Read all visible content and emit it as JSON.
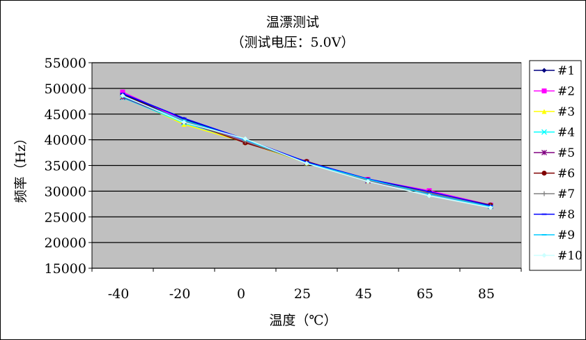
{
  "chart_data": {
    "type": "line",
    "title": "温漂测试",
    "subtitle": "（测试电压：5.0V）",
    "xlabel": "温度（℃）",
    "ylabel": "频率（Hz）",
    "categories": [
      "-40",
      "-20",
      "0",
      "25",
      "45",
      "65",
      "85"
    ],
    "ylim": [
      15000,
      55000
    ],
    "yticks": [
      "15000",
      "20000",
      "25000",
      "30000",
      "35000",
      "40000",
      "45000",
      "50000",
      "55000"
    ],
    "grid": "horizontal",
    "legend_position": "right",
    "series": [
      {
        "name": "#1",
        "color": "#000080",
        "marker": "diamond",
        "values": [
          48800,
          44000,
          40000,
          35600,
          32200,
          29700,
          27100
        ]
      },
      {
        "name": "#2",
        "color": "#FF00FF",
        "marker": "square",
        "values": [
          49300,
          43800,
          39800,
          35700,
          32300,
          30100,
          27300
        ]
      },
      {
        "name": "#3",
        "color": "#FFFF00",
        "marker": "triangle",
        "values": [
          48500,
          43000,
          39500,
          35500,
          32000,
          29600,
          27200
        ]
      },
      {
        "name": "#4",
        "color": "#00FFFF",
        "marker": "x",
        "values": [
          48200,
          43300,
          39700,
          35600,
          32100,
          29500,
          27000
        ]
      },
      {
        "name": "#5",
        "color": "#800080",
        "marker": "star",
        "values": [
          48300,
          43500,
          39600,
          35600,
          32000,
          29600,
          27100
        ]
      },
      {
        "name": "#6",
        "color": "#800000",
        "marker": "circle",
        "values": [
          48700,
          43700,
          39400,
          35800,
          32200,
          29800,
          27300
        ]
      },
      {
        "name": "#7",
        "color": "#808080",
        "marker": "plus",
        "values": [
          48600,
          43600,
          39700,
          35500,
          32100,
          29700,
          27100
        ]
      },
      {
        "name": "#8",
        "color": "#0000FF",
        "marker": "dash",
        "values": [
          49000,
          44200,
          40100,
          35700,
          32400,
          29900,
          27200
        ]
      },
      {
        "name": "#9",
        "color": "#00CCFF",
        "marker": "dash",
        "values": [
          48400,
          43800,
          40000,
          35500,
          32300,
          29400,
          27000
        ]
      },
      {
        "name": "#10",
        "color": "#CCFFFF",
        "marker": "diamond",
        "values": [
          48600,
          43400,
          40200,
          35400,
          31900,
          29100,
          26800
        ]
      }
    ]
  }
}
